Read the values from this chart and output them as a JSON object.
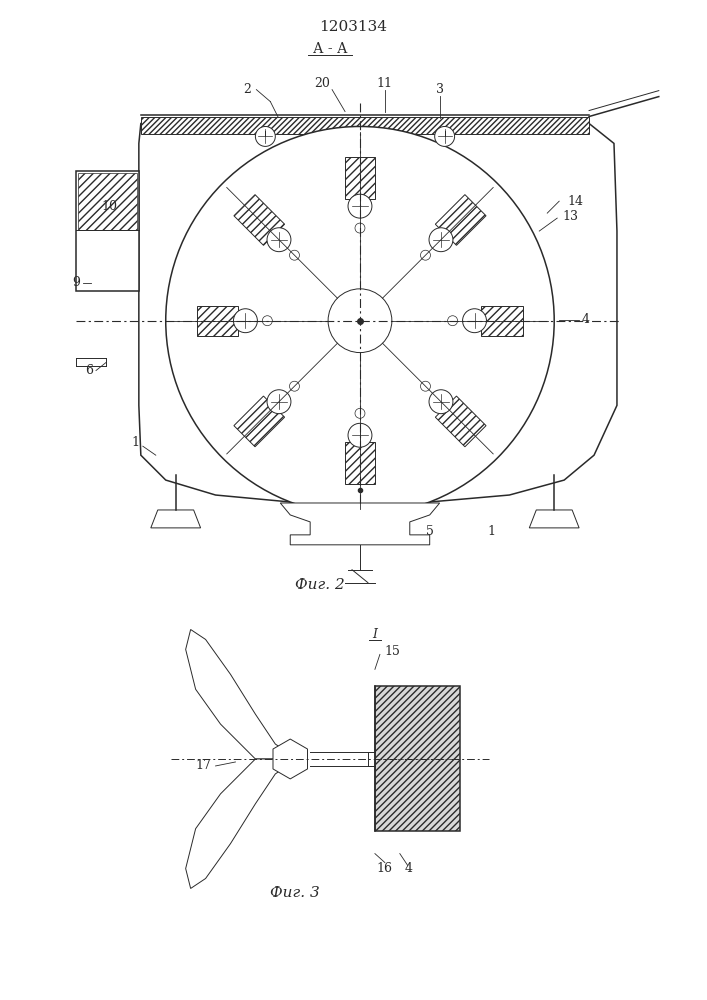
{
  "patent_number": "1203134",
  "bg_color": "#ffffff",
  "line_color": "#2a2a2a",
  "fig2_caption": "Фиг. 2",
  "fig3_caption": "Фиг. 3",
  "section_label": "А - А"
}
